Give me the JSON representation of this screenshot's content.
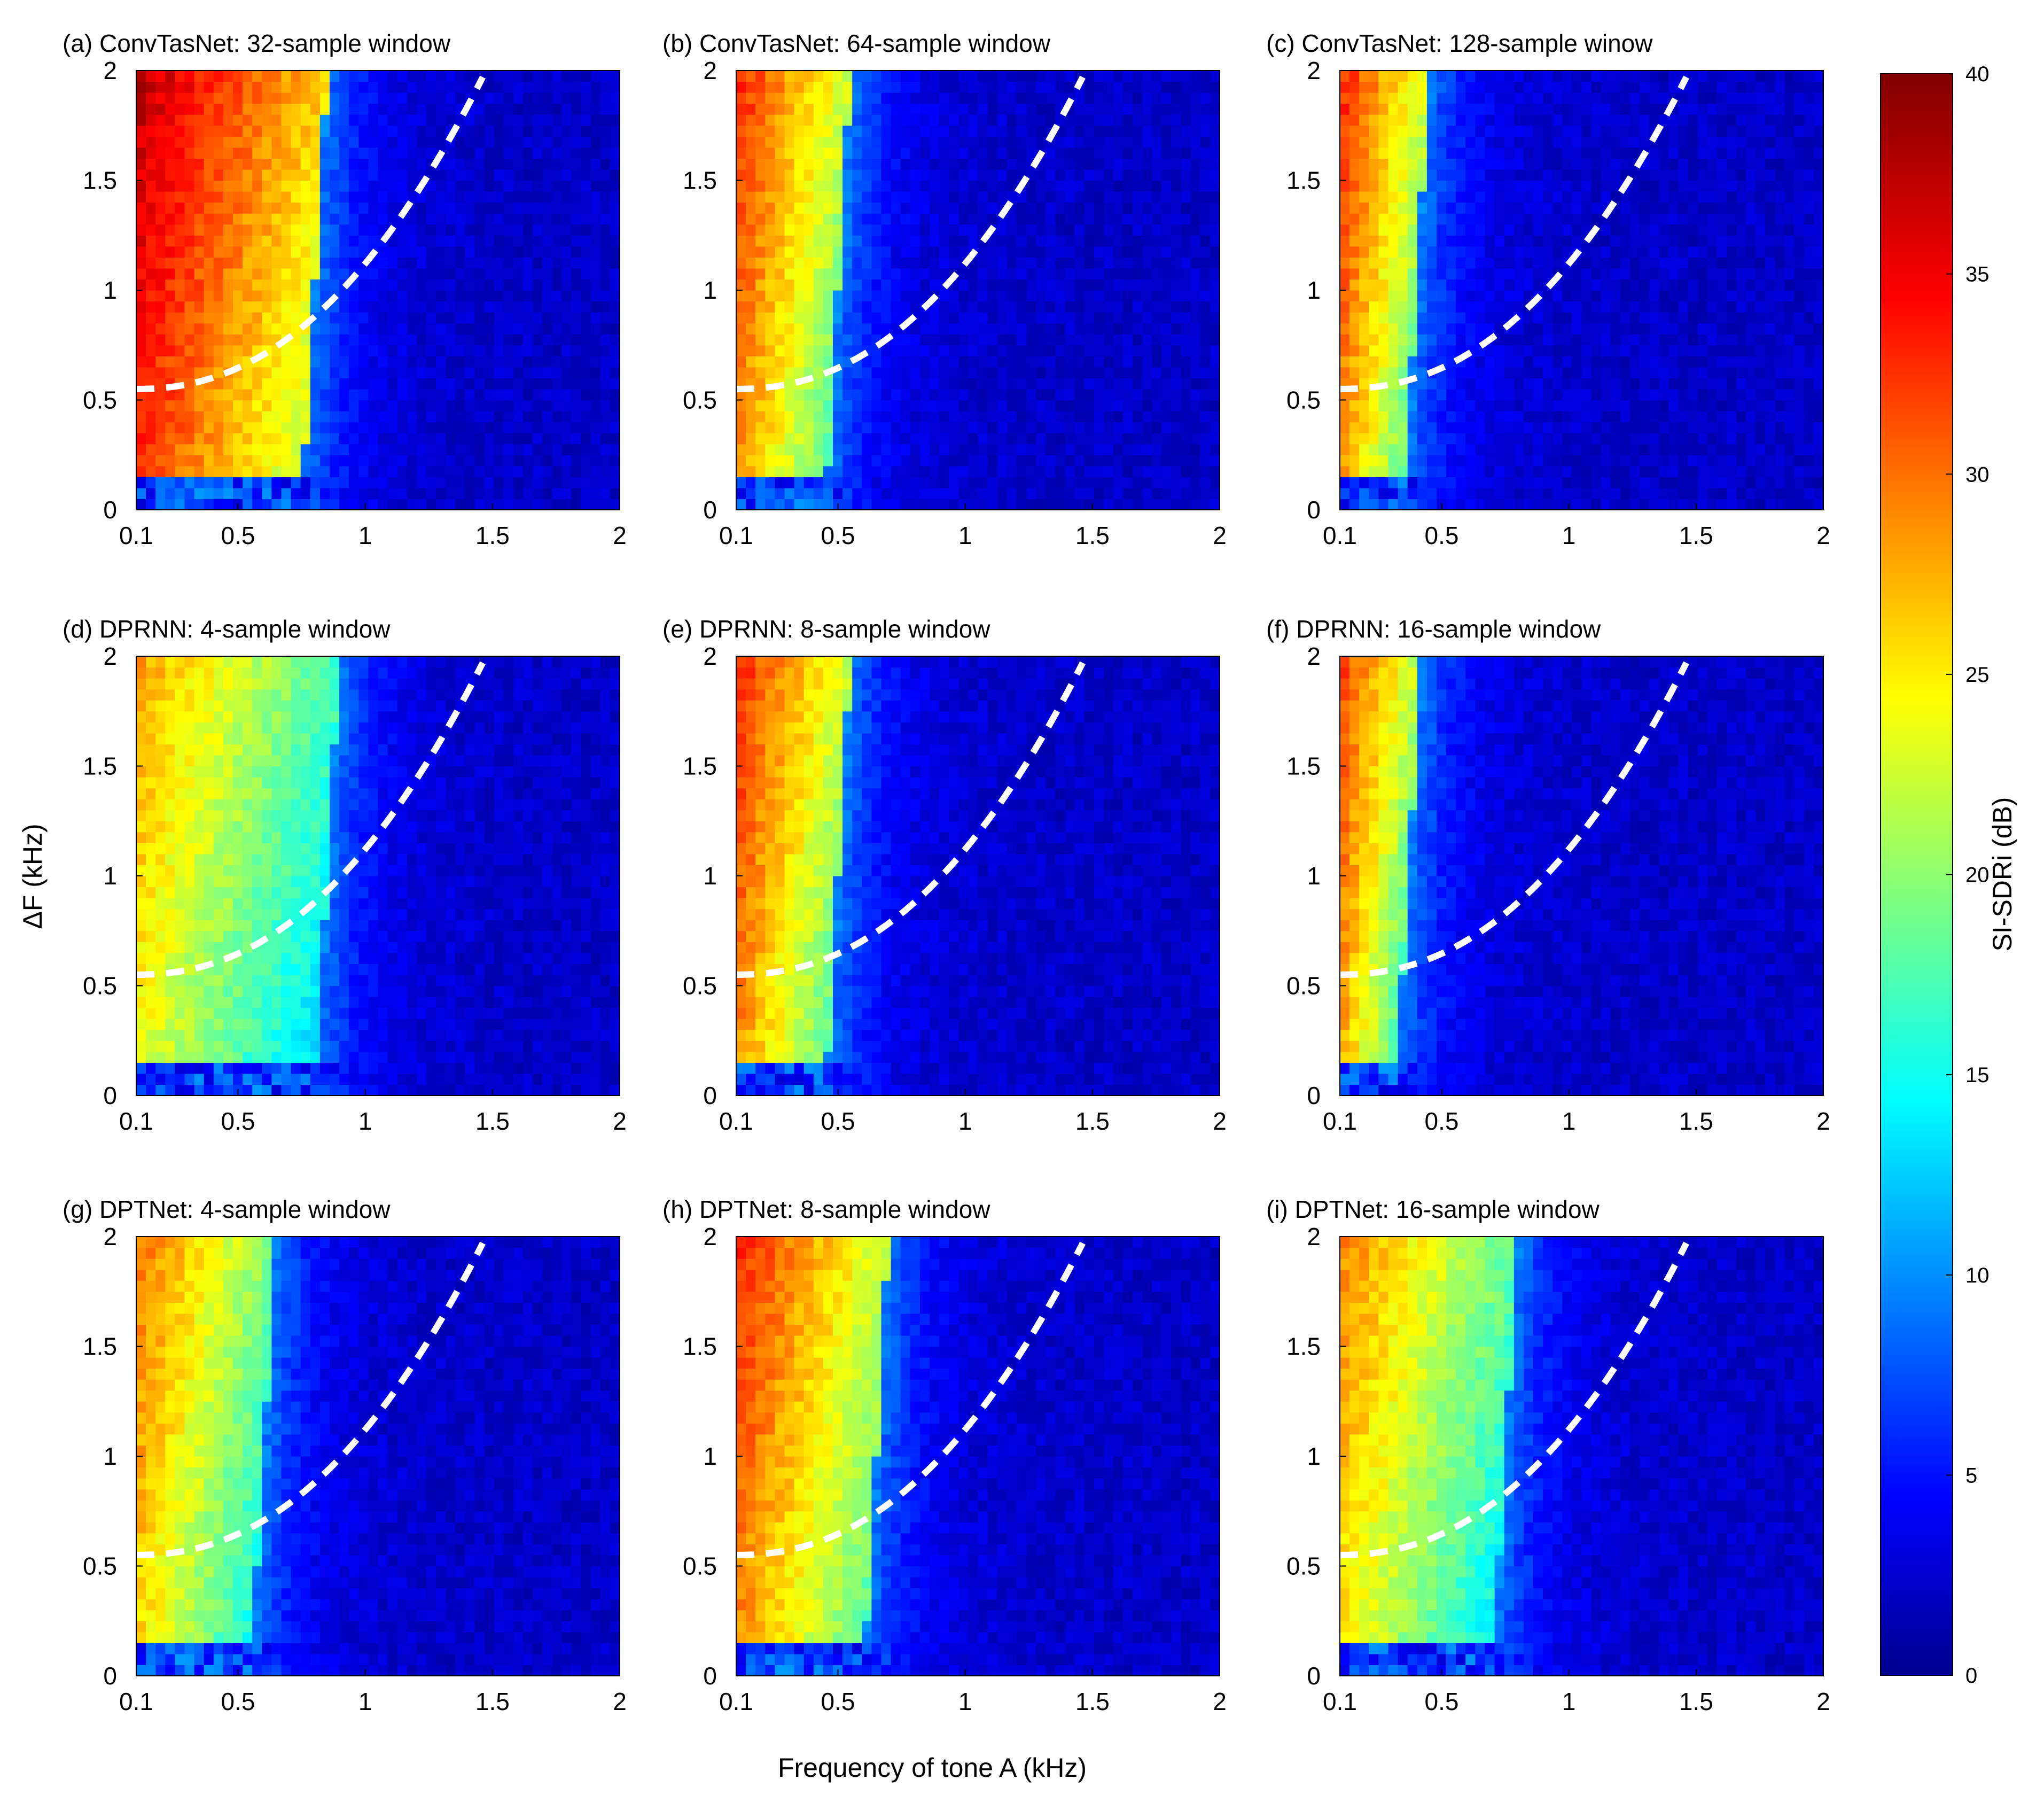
{
  "figure": {
    "xlabel": "Frequency of tone A (kHz)",
    "ylabel": "ΔF (kHz)"
  },
  "colorbar": {
    "label": "SI-SDRi (dB)",
    "ticks": [
      0,
      5,
      10,
      15,
      20,
      25,
      30,
      35,
      40
    ],
    "range": [
      0,
      40
    ],
    "colormap": "jet"
  },
  "chart_data": [
    {
      "id": "a",
      "type": "heatmap",
      "title": "(a) ConvTasNet: 32-sample window",
      "model": "ConvTasNet",
      "window_samples": 32,
      "x_ticks": [
        "0.1",
        "0.5",
        "1",
        "1.5",
        "2"
      ],
      "y_ticks": [
        "0",
        "0.5",
        "1",
        "1.5",
        "2"
      ],
      "xlim": [
        0.1,
        2
      ],
      "ylim": [
        0,
        2
      ],
      "high_region": {
        "x_max": 0.85,
        "peak_db": 38
      },
      "boundary_curve": "dashed-white"
    },
    {
      "id": "b",
      "type": "heatmap",
      "title": "(b) ConvTasNet: 64-sample window",
      "model": "ConvTasNet",
      "window_samples": 64,
      "x_ticks": [
        "0.1",
        "0.5",
        "1",
        "1.5",
        "2"
      ],
      "y_ticks": [
        "0",
        "0.5",
        "1",
        "1.5",
        "2"
      ],
      "xlim": [
        0.1,
        2
      ],
      "ylim": [
        0,
        2
      ],
      "high_region": {
        "x_max": 0.55,
        "peak_db": 34
      },
      "boundary_curve": "dashed-white"
    },
    {
      "id": "c",
      "type": "heatmap",
      "title": "(c) ConvTasNet: 128-sample winow",
      "model": "ConvTasNet",
      "window_samples": 128,
      "x_ticks": [
        "0.1",
        "0.5",
        "1",
        "1.5",
        "2"
      ],
      "y_ticks": [
        "0",
        "0.5",
        "1",
        "1.5",
        "2"
      ],
      "xlim": [
        0.1,
        2
      ],
      "ylim": [
        0,
        2
      ],
      "high_region": {
        "x_max": 0.45,
        "peak_db": 34
      },
      "boundary_curve": "dashed-white"
    },
    {
      "id": "d",
      "type": "heatmap",
      "title": "(d) DPRNN: 4-sample window",
      "model": "DPRNN",
      "window_samples": 4,
      "x_ticks": [
        "0.1",
        "0.5",
        "1",
        "1.5",
        "2"
      ],
      "y_ticks": [
        "0",
        "0.5",
        "1",
        "1.5",
        "2"
      ],
      "xlim": [
        0.1,
        2
      ],
      "ylim": [
        0,
        2
      ],
      "high_region": {
        "x_max": 0.9,
        "peak_db": 29
      },
      "boundary_curve": "dashed-white"
    },
    {
      "id": "e",
      "type": "heatmap",
      "title": "(e) DPRNN: 8-sample window",
      "model": "DPRNN",
      "window_samples": 8,
      "x_ticks": [
        "0.1",
        "0.5",
        "1",
        "1.5",
        "2"
      ],
      "y_ticks": [
        "0",
        "0.5",
        "1",
        "1.5",
        "2"
      ],
      "xlim": [
        0.1,
        2
      ],
      "ylim": [
        0,
        2
      ],
      "high_region": {
        "x_max": 0.55,
        "peak_db": 34
      },
      "boundary_curve": "dashed-white"
    },
    {
      "id": "f",
      "type": "heatmap",
      "title": "(f) DPRNN: 16-sample window",
      "model": "DPRNN",
      "window_samples": 16,
      "x_ticks": [
        "0.1",
        "0.5",
        "1",
        "1.5",
        "2"
      ],
      "y_ticks": [
        "0",
        "0.5",
        "1",
        "1.5",
        "2"
      ],
      "xlim": [
        0.1,
        2
      ],
      "ylim": [
        0,
        2
      ],
      "high_region": {
        "x_max": 0.42,
        "peak_db": 33
      },
      "boundary_curve": "dashed-white"
    },
    {
      "id": "g",
      "type": "heatmap",
      "title": "(g) DPTNet: 4-sample window",
      "model": "DPTNet",
      "window_samples": 4,
      "x_ticks": [
        "0.1",
        "0.5",
        "1",
        "1.5",
        "2"
      ],
      "y_ticks": [
        "0",
        "0.5",
        "1",
        "1.5",
        "2"
      ],
      "xlim": [
        0.1,
        2
      ],
      "ylim": [
        0,
        2
      ],
      "high_region": {
        "x_max": 0.65,
        "peak_db": 31
      },
      "boundary_curve": "dashed-white"
    },
    {
      "id": "h",
      "type": "heatmap",
      "title": "(h) DPTNet: 8-sample window",
      "model": "DPTNet",
      "window_samples": 8,
      "x_ticks": [
        "0.1",
        "0.5",
        "1",
        "1.5",
        "2"
      ],
      "y_ticks": [
        "0",
        "0.5",
        "1",
        "1.5",
        "2"
      ],
      "xlim": [
        0.1,
        2
      ],
      "ylim": [
        0,
        2
      ],
      "high_region": {
        "x_max": 0.7,
        "peak_db": 34
      },
      "boundary_curve": "dashed-white"
    },
    {
      "id": "i",
      "type": "heatmap",
      "title": "(i) DPTNet: 16-sample window",
      "model": "DPTNet",
      "window_samples": 16,
      "x_ticks": [
        "0.1",
        "0.5",
        "1",
        "1.5",
        "2"
      ],
      "y_ticks": [
        "0",
        "0.5",
        "1",
        "1.5",
        "2"
      ],
      "xlim": [
        0.1,
        2
      ],
      "ylim": [
        0,
        2
      ],
      "high_region": {
        "x_max": 0.8,
        "peak_db": 30
      },
      "boundary_curve": "dashed-white"
    }
  ]
}
